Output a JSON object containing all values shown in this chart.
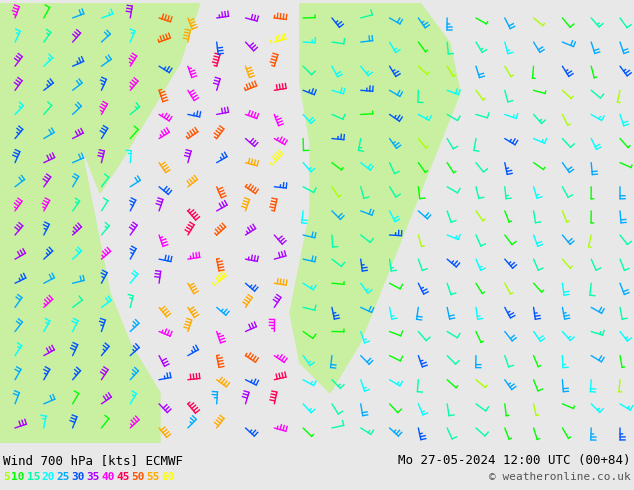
{
  "title_left": "Wind 700 hPa [kts] ECMWF",
  "title_right": "Mo 27-05-2024 12:00 UTC (00+84)",
  "copyright": "© weatheronline.co.uk",
  "legend_values": [
    5,
    10,
    15,
    20,
    25,
    30,
    35,
    40,
    45,
    50,
    55,
    60
  ],
  "legend_colors": [
    "#aaff00",
    "#00ff00",
    "#00ffaa",
    "#00ffff",
    "#00aaff",
    "#0055ff",
    "#aa00ff",
    "#ff00ff",
    "#ff0055",
    "#ff5500",
    "#ffaa00",
    "#ffff00"
  ],
  "bg_color_land": "#c8f0a0",
  "bg_color_sea": "#e8e8e8",
  "bottom_bar_color": "#d0d0d0",
  "title_fontsize": 9,
  "legend_fontsize": 8,
  "figsize": [
    6.34,
    4.9
  ],
  "dpi": 100
}
